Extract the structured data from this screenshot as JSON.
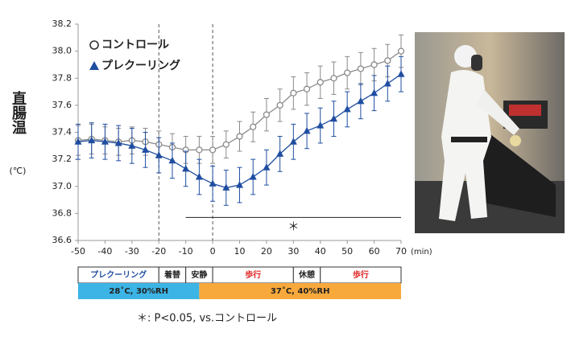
{
  "chart_data": {
    "type": "line",
    "y_label": "直腸温",
    "y_unit": "(℃)",
    "x_unit": "(min)",
    "x": [
      -50,
      -45,
      -40,
      -35,
      -30,
      -25,
      -20,
      -15,
      -10,
      -5,
      0,
      5,
      10,
      15,
      20,
      25,
      30,
      35,
      40,
      45,
      50,
      55,
      60,
      65,
      70
    ],
    "series": [
      {
        "name": "コントロール",
        "marker": "circle",
        "color": "#8a8a8a",
        "values": [
          37.34,
          37.35,
          37.34,
          37.33,
          37.34,
          37.33,
          37.31,
          37.29,
          37.27,
          37.27,
          37.27,
          37.31,
          37.37,
          37.44,
          37.53,
          37.6,
          37.69,
          37.72,
          37.77,
          37.8,
          37.84,
          37.87,
          37.9,
          37.93,
          38.0
        ],
        "errors": [
          0.11,
          0.11,
          0.1,
          0.1,
          0.1,
          0.1,
          0.1,
          0.1,
          0.1,
          0.1,
          0.1,
          0.1,
          0.11,
          0.11,
          0.12,
          0.12,
          0.12,
          0.12,
          0.12,
          0.12,
          0.12,
          0.12,
          0.12,
          0.12,
          0.12
        ]
      },
      {
        "name": "プレクーリング",
        "marker": "triangle",
        "color": "#1f4ea1",
        "values": [
          37.33,
          37.34,
          37.33,
          37.32,
          37.3,
          37.27,
          37.23,
          37.19,
          37.13,
          37.07,
          37.02,
          36.99,
          37.01,
          37.07,
          37.14,
          37.24,
          37.33,
          37.41,
          37.45,
          37.5,
          37.57,
          37.63,
          37.69,
          37.76,
          37.83
        ],
        "errors": [
          0.13,
          0.13,
          0.13,
          0.13,
          0.13,
          0.13,
          0.13,
          0.13,
          0.13,
          0.13,
          0.13,
          0.13,
          0.13,
          0.13,
          0.13,
          0.13,
          0.13,
          0.13,
          0.13,
          0.13,
          0.13,
          0.13,
          0.13,
          0.13,
          0.13
        ]
      }
    ],
    "xlim": [
      -50,
      70
    ],
    "xticks": [
      -50,
      -40,
      -30,
      -20,
      -10,
      0,
      10,
      20,
      30,
      40,
      50,
      60,
      70
    ],
    "ylim": [
      36.6,
      38.2
    ],
    "yticks": [
      36.6,
      36.8,
      {
        "value": 37,
        "label": "37.0"
      },
      37.2,
      37.4,
      37.6,
      37.8,
      {
        "value": 38,
        "label": "38.0"
      },
      38.2
    ],
    "vlines": [
      -20,
      0
    ],
    "significance": {
      "text": "＊",
      "x": [
        -10,
        70
      ],
      "y": 36.77
    },
    "phases": [
      {
        "label": "プレクーリング",
        "x": [
          -50,
          -20
        ],
        "color": "#1f4ea1"
      },
      {
        "label": "着替",
        "x": [
          -20,
          -10
        ],
        "color": "#222222"
      },
      {
        "label": "安静",
        "x": [
          -10,
          0
        ],
        "color": "#222222"
      },
      {
        "label": "歩行",
        "x": [
          0,
          30
        ],
        "color": "#e02020"
      },
      {
        "label": "休憩",
        "x": [
          30,
          40
        ],
        "color": "#222222"
      },
      {
        "label": "歩行",
        "x": [
          40,
          70
        ],
        "color": "#e02020"
      }
    ],
    "conditions": [
      {
        "label": "28˚C, 30%RH",
        "x": [
          -50,
          -5
        ],
        "color": "#3cb4e5"
      },
      {
        "label": "37˚C, 40%RH",
        "x": [
          -5,
          70
        ],
        "color": "#f8a93c"
      }
    ],
    "footnote": "＊: P<0.05, vs.コントロール"
  }
}
